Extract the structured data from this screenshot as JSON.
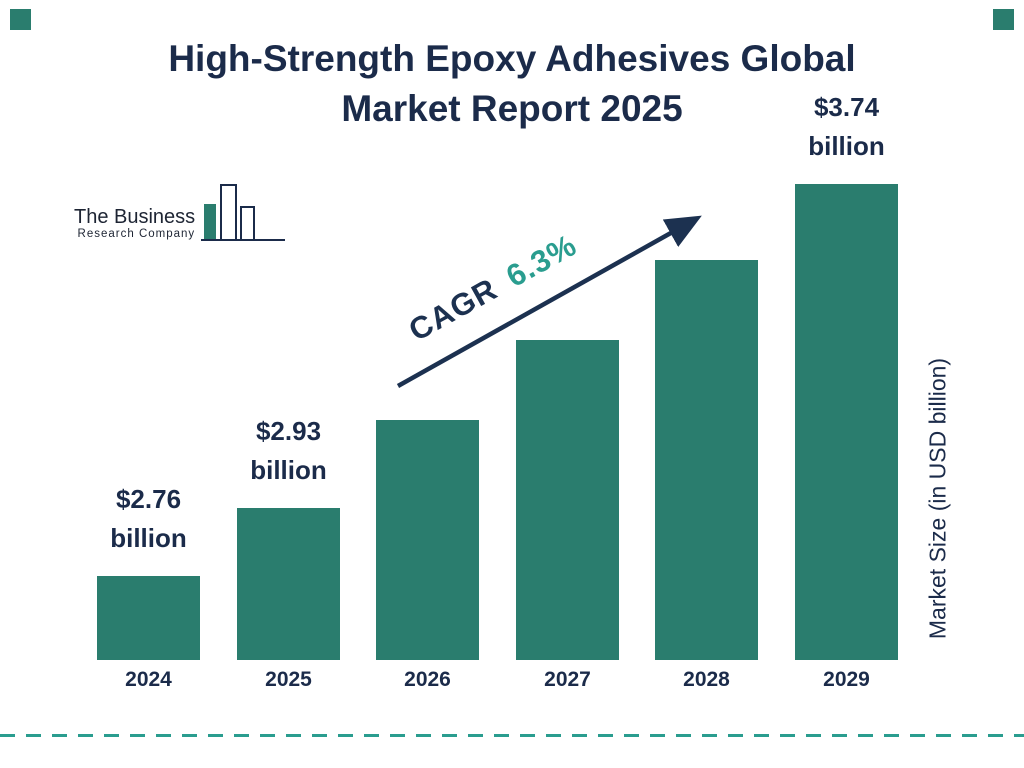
{
  "page": {
    "title_line1": "High-Strength Epoxy Adhesives Global",
    "title_line2": "Market Report 2025"
  },
  "logo": {
    "line1": "The Business",
    "line2": "Research Company"
  },
  "chart_data": {
    "type": "bar",
    "title": "High-Strength Epoxy Adhesives Global Market Report 2025",
    "categories": [
      "2024",
      "2025",
      "2026",
      "2027",
      "2028",
      "2029"
    ],
    "values": [
      2.76,
      2.93,
      3.15,
      3.35,
      3.55,
      3.74
    ],
    "value_labels": [
      "$2.76 billion",
      "$2.93 billion",
      null,
      null,
      null,
      "$3.74 billion"
    ],
    "xlabel": "",
    "ylabel": "Market Size (in USD billion)",
    "annotation": {
      "label": "CAGR",
      "value": "6.3%"
    },
    "colors": {
      "bar": "#2a7d6e",
      "text": "#1b2b4a",
      "accent": "#2a9d8f",
      "arrow": "#1c3150"
    },
    "ylim": [
      2.55,
      3.8
    ],
    "grid": false,
    "legend": false
  }
}
